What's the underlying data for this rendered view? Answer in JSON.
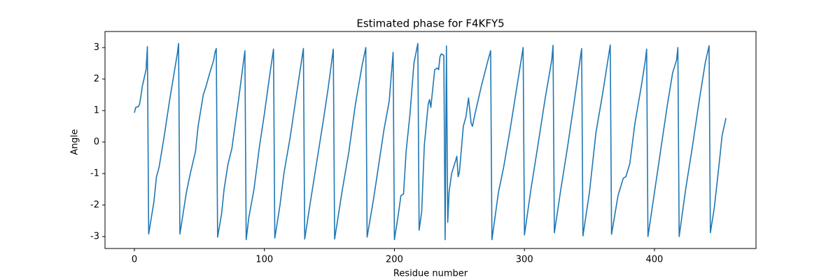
{
  "chart_data": {
    "type": "line",
    "title": "Estimated phase for F4KFY5",
    "x_label": "Residue number",
    "y_label": "Angle",
    "color": "#1f77b4",
    "x": [
      0,
      1,
      3,
      4,
      5,
      6,
      9,
      10,
      11,
      15,
      17,
      19,
      23,
      27,
      31,
      33,
      34,
      35,
      40,
      43,
      47,
      49,
      53,
      55,
      58,
      61,
      62,
      63,
      64,
      67,
      69,
      72,
      75,
      80,
      85,
      86,
      88,
      92,
      96,
      100,
      104,
      107,
      108,
      112,
      115,
      120,
      125,
      130,
      131,
      135,
      140,
      145,
      149,
      153,
      154,
      160,
      165,
      170,
      175,
      178,
      179,
      184,
      188,
      192,
      196,
      199,
      200,
      203,
      205,
      207,
      209,
      212,
      215,
      218,
      219,
      221,
      223,
      226,
      227,
      228,
      229,
      231,
      233,
      234,
      235,
      236,
      238,
      239,
      240,
      241,
      242,
      244,
      247,
      248,
      249,
      250,
      253,
      255,
      257,
      259,
      260,
      262,
      267,
      272,
      274,
      275,
      280,
      284,
      289,
      294,
      299,
      300,
      305,
      310,
      316,
      321,
      322,
      323,
      328,
      333,
      338,
      344,
      345,
      350,
      355,
      360,
      366,
      367,
      372,
      376,
      378,
      381,
      385,
      390,
      393,
      394,
      395,
      400,
      405,
      410,
      414,
      417,
      418,
      419,
      424,
      429,
      434,
      439,
      442,
      443,
      446,
      450,
      452,
      455
    ],
    "values": [
      0.93,
      1.1,
      1.12,
      1.2,
      1.45,
      1.75,
      2.3,
      3.03,
      -2.92,
      -1.9,
      -1.1,
      -0.8,
      0.2,
      1.3,
      2.3,
      2.8,
      3.13,
      -2.92,
      -1.6,
      -1.0,
      -0.3,
      0.5,
      1.5,
      1.75,
      2.2,
      2.6,
      2.85,
      2.97,
      -3.02,
      -2.3,
      -1.5,
      -0.7,
      -0.2,
      1.3,
      2.9,
      -3.1,
      -2.4,
      -1.5,
      -0.2,
      0.9,
      2.1,
      2.95,
      -3.05,
      -2.0,
      -1.0,
      0.2,
      1.6,
      2.97,
      -3.08,
      -2.0,
      -0.7,
      0.6,
      1.7,
      2.95,
      -3.08,
      -1.5,
      -0.3,
      1.2,
      2.4,
      3.0,
      -3.02,
      -1.8,
      -0.7,
      0.4,
      1.3,
      2.85,
      -3.1,
      -2.3,
      -1.7,
      -1.65,
      -0.3,
      0.9,
      2.5,
      3.13,
      -2.8,
      -2.2,
      -0.1,
      1.2,
      1.35,
      1.1,
      1.5,
      2.3,
      2.35,
      2.3,
      2.7,
      2.8,
      2.75,
      -3.1,
      3.05,
      -2.55,
      -1.6,
      -1.0,
      -0.6,
      -0.45,
      -1.1,
      -0.95,
      0.5,
      0.8,
      1.4,
      0.6,
      0.5,
      0.9,
      1.8,
      2.6,
      2.9,
      -3.1,
      -1.6,
      -0.8,
      0.4,
      1.7,
      3.0,
      -2.95,
      -1.5,
      -0.2,
      1.4,
      2.6,
      3.07,
      -2.88,
      -1.5,
      -0.2,
      1.2,
      2.97,
      -2.98,
      -1.6,
      0.3,
      1.5,
      3.08,
      -2.93,
      -1.7,
      -1.15,
      -1.1,
      -0.7,
      0.6,
      1.8,
      2.6,
      2.95,
      -3.0,
      -1.6,
      -0.2,
      1.2,
      2.2,
      2.6,
      3.0,
      -3.0,
      -1.5,
      -0.2,
      1.2,
      2.5,
      3.06,
      -2.88,
      -2.1,
      -0.6,
      0.2,
      0.76
    ],
    "xlim": [
      -22.6,
      478.1
    ],
    "ylim": [
      -3.38,
      3.51
    ],
    "xticks": [
      0,
      100,
      200,
      300,
      400
    ],
    "yticks": [
      -3,
      -2,
      -1,
      0,
      1,
      2,
      3
    ]
  }
}
